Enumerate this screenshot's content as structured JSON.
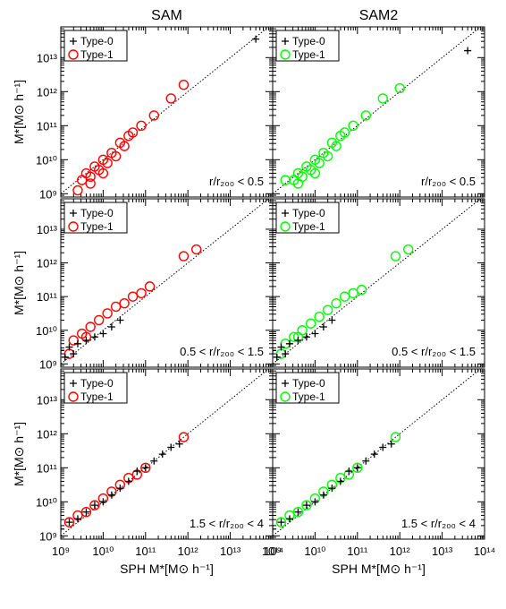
{
  "chart_data": {
    "type": "scatter",
    "columns": [
      "SAM",
      "SAM2"
    ],
    "xlabel": "SPH M*[M⊙ h⁻¹]",
    "ylabel": "M*[M⊙ h⁻¹]",
    "xscale": "log",
    "yscale": "log",
    "xlim": [
      1000000000.0,
      100000000000000.0
    ],
    "ylim": [
      800000000.0,
      80000000000000.0
    ],
    "x_ticks": [
      "10⁹",
      "10¹⁰",
      "10¹¹",
      "10¹²",
      "10¹³",
      "10¹⁴"
    ],
    "y_ticks": [
      "10⁹",
      "10¹⁰",
      "10¹¹",
      "10¹²",
      "10¹³"
    ],
    "legend": [
      "Type-0",
      "Type-1"
    ],
    "one_to_one_line": true,
    "colors": {
      "SAM": "#ff0000",
      "SAM2": "#00ff00",
      "type0": "#000000"
    },
    "panels": [
      {
        "column": "SAM",
        "label": "r/r₂₀₀ < 0.5",
        "type0": [
          {
            "x": 40000000000000.0,
            "y": 35000000000000.0
          }
        ],
        "type1": [
          [
            9.5,
            9.4
          ],
          [
            9.6,
            9.6
          ],
          [
            9.7,
            9.5
          ],
          [
            9.8,
            9.8
          ],
          [
            9.9,
            9.7
          ],
          [
            10,
            10
          ],
          [
            10.1,
            9.9
          ],
          [
            10.2,
            10.2
          ],
          [
            10.3,
            10.1
          ],
          [
            10.4,
            10.5
          ],
          [
            10.5,
            10.4
          ],
          [
            10.6,
            10.7
          ],
          [
            10.7,
            10.8
          ],
          [
            10.9,
            11
          ],
          [
            11.2,
            11.3
          ],
          [
            11.6,
            11.8
          ],
          [
            11.9,
            12.2
          ],
          [
            9.4,
            9.1
          ],
          [
            9.7,
            9.3
          ],
          [
            10,
            9.6
          ]
        ]
      },
      {
        "column": "SAM2",
        "label": "r/r₂₀₀ < 0.5",
        "type0": [
          {
            "x": 40000000000000.0,
            "y": 16000000000000.0
          }
        ],
        "type1": [
          [
            9.5,
            9.4
          ],
          [
            9.6,
            9.6
          ],
          [
            9.7,
            9.5
          ],
          [
            9.8,
            9.8
          ],
          [
            9.9,
            9.7
          ],
          [
            10,
            10
          ],
          [
            10.1,
            9.9
          ],
          [
            10.2,
            10.2
          ],
          [
            10.3,
            10.1
          ],
          [
            10.4,
            10.5
          ],
          [
            10.5,
            10.4
          ],
          [
            10.6,
            10.7
          ],
          [
            10.7,
            10.8
          ],
          [
            10.9,
            11
          ],
          [
            11.2,
            11.3
          ],
          [
            11.6,
            11.8
          ],
          [
            12.0,
            12.1
          ],
          [
            9.3,
            9.4
          ],
          [
            9.6,
            9.3
          ],
          [
            10,
            9.6
          ]
        ]
      },
      {
        "column": "SAM",
        "label": "0.5 < r/r₂₀₀ < 1.5",
        "type0": [
          [
            9,
            9.4
          ],
          [
            9.2,
            9.5
          ],
          [
            9.4,
            9.6
          ],
          [
            9.6,
            9.7
          ],
          [
            9.8,
            9.8
          ],
          [
            10,
            9.9
          ],
          [
            10.2,
            10.1
          ],
          [
            10.4,
            10.3
          ],
          [
            9.1,
            9.2
          ],
          [
            9.3,
            9.3
          ]
        ],
        "type1": [
          [
            9.3,
            9.7
          ],
          [
            9.5,
            9.9
          ],
          [
            9.7,
            10.1
          ],
          [
            9.9,
            10.3
          ],
          [
            10.1,
            10.5
          ],
          [
            10.3,
            10.7
          ],
          [
            10.5,
            10.8
          ],
          [
            10.7,
            11.0
          ],
          [
            10.9,
            11.1
          ],
          [
            11.1,
            11.3
          ],
          [
            11.9,
            12.2
          ],
          [
            12.2,
            12.4
          ],
          [
            9.2,
            9.3
          ],
          [
            9.6,
            9.8
          ]
        ]
      },
      {
        "column": "SAM2",
        "label": "0.5 < r/r₂₀₀ < 1.5",
        "type0": [
          [
            9,
            9.4
          ],
          [
            9.2,
            9.5
          ],
          [
            9.4,
            9.6
          ],
          [
            9.6,
            9.7
          ],
          [
            9.8,
            9.8
          ],
          [
            10,
            9.9
          ],
          [
            10.2,
            10.1
          ],
          [
            10.4,
            10.3
          ],
          [
            9.1,
            9.2
          ],
          [
            9.3,
            9.3
          ]
        ],
        "type1": [
          [
            9.3,
            9.6
          ],
          [
            9.5,
            9.8
          ],
          [
            9.7,
            10.0
          ],
          [
            9.9,
            10.2
          ],
          [
            10.1,
            10.4
          ],
          [
            10.3,
            10.6
          ],
          [
            10.5,
            10.8
          ],
          [
            10.7,
            11.0
          ],
          [
            10.9,
            11.1
          ],
          [
            11.1,
            11.2
          ],
          [
            11.9,
            12.2
          ],
          [
            12.2,
            12.4
          ],
          [
            9.2,
            9.3
          ],
          [
            9.6,
            9.8
          ]
        ]
      },
      {
        "column": "SAM",
        "label": "1.5 < r/r₂₀₀ < 4",
        "type0": [
          [
            9,
            9.2
          ],
          [
            9.2,
            9.4
          ],
          [
            9.4,
            9.5
          ],
          [
            9.6,
            9.7
          ],
          [
            9.8,
            9.9
          ],
          [
            10,
            10.0
          ],
          [
            10.2,
            10.2
          ],
          [
            10.4,
            10.4
          ],
          [
            10.6,
            10.6
          ],
          [
            10.8,
            10.9
          ],
          [
            11,
            11.0
          ],
          [
            11.2,
            11.2
          ],
          [
            11.4,
            11.4
          ],
          [
            11.6,
            11.6
          ],
          [
            11.8,
            11.7
          ]
        ],
        "type1": [
          [
            9.2,
            9.4
          ],
          [
            9.4,
            9.6
          ],
          [
            9.6,
            9.7
          ],
          [
            9.8,
            9.9
          ],
          [
            10,
            10.1
          ],
          [
            10.2,
            10.3
          ],
          [
            10.4,
            10.5
          ],
          [
            10.6,
            10.7
          ],
          [
            10.8,
            10.8
          ],
          [
            11.0,
            11.0
          ],
          [
            11.9,
            11.9
          ]
        ]
      },
      {
        "column": "SAM2",
        "label": "1.5 < r/r₂₀₀ < 4",
        "type0": [
          [
            9,
            9.2
          ],
          [
            9.2,
            9.4
          ],
          [
            9.4,
            9.5
          ],
          [
            9.6,
            9.7
          ],
          [
            9.8,
            9.9
          ],
          [
            10,
            10.0
          ],
          [
            10.2,
            10.2
          ],
          [
            10.4,
            10.4
          ],
          [
            10.6,
            10.6
          ],
          [
            10.8,
            10.9
          ],
          [
            11,
            11.0
          ],
          [
            11.2,
            11.2
          ],
          [
            11.4,
            11.4
          ],
          [
            11.6,
            11.6
          ],
          [
            11.8,
            11.7
          ]
        ],
        "type1": [
          [
            9.2,
            9.4
          ],
          [
            9.4,
            9.6
          ],
          [
            9.6,
            9.7
          ],
          [
            9.8,
            9.9
          ],
          [
            10,
            10.1
          ],
          [
            10.2,
            10.3
          ],
          [
            10.4,
            10.5
          ],
          [
            10.6,
            10.7
          ],
          [
            10.8,
            10.8
          ],
          [
            11.0,
            11.0
          ],
          [
            11.9,
            11.9
          ]
        ]
      }
    ]
  }
}
